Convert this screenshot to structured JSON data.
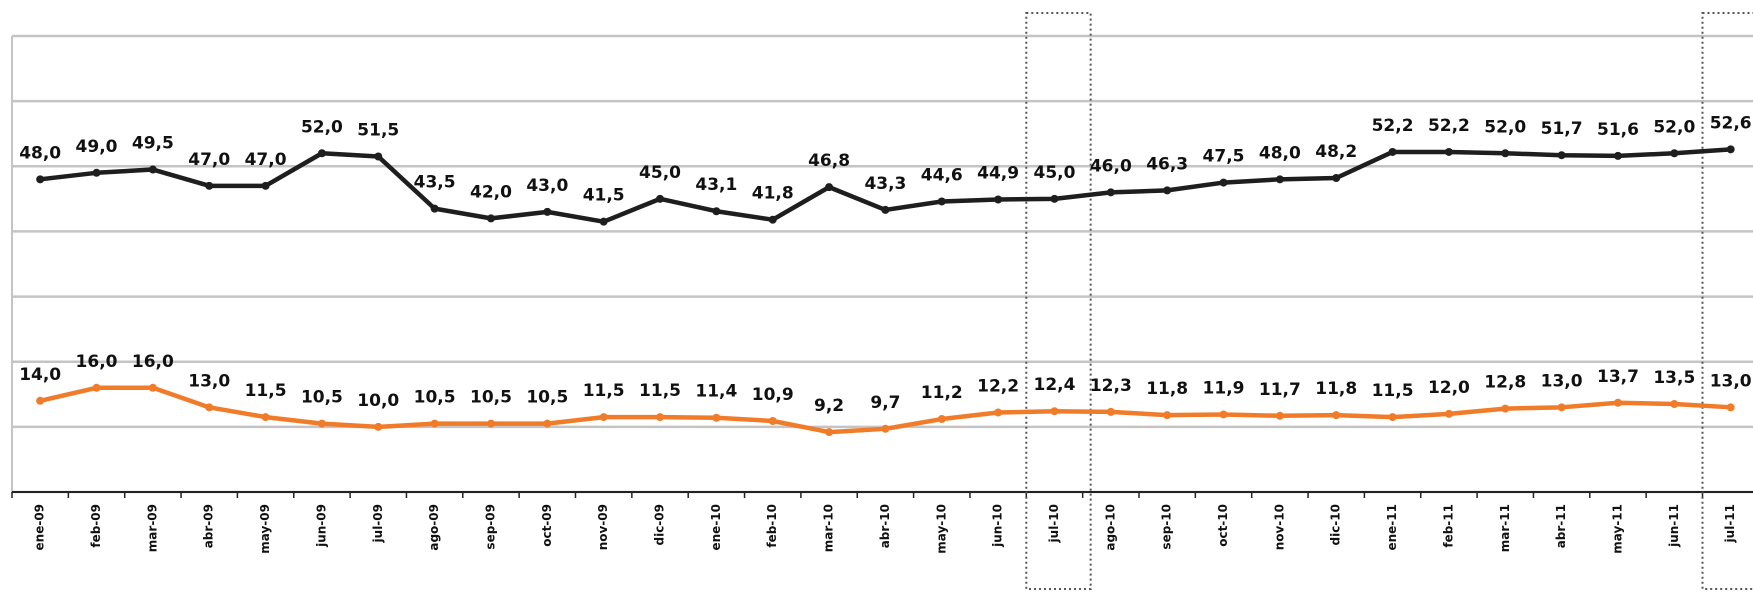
{
  "chart_data": {
    "type": "line",
    "categories": [
      "ene-09",
      "feb-09",
      "mar-09",
      "abr-09",
      "may-09",
      "jun-09",
      "jul-09",
      "ago-09",
      "sep-09",
      "oct-09",
      "nov-09",
      "dic-09",
      "ene-10",
      "feb-10",
      "mar-10",
      "abr-10",
      "may-10",
      "jun-10",
      "jul-10",
      "ago-10",
      "sep-10",
      "oct-10",
      "nov-10",
      "dic-10",
      "ene-11",
      "feb-11",
      "mar-11",
      "abr-11",
      "may-11",
      "jun-11",
      "jul-11"
    ],
    "series": [
      {
        "color": "#1e1e1e",
        "values": [
          48.0,
          49.0,
          49.5,
          47.0,
          47.0,
          52.0,
          51.5,
          43.5,
          42.0,
          43.0,
          41.5,
          45.0,
          43.1,
          41.8,
          46.8,
          43.3,
          44.6,
          44.9,
          45.0,
          46.0,
          46.3,
          47.5,
          48.0,
          48.2,
          52.2,
          52.2,
          52.0,
          51.7,
          51.6,
          52.0,
          52.6
        ],
        "value_labels": [
          "48,0",
          "49,0",
          "49,5",
          "47,0",
          "47,0",
          "52,0",
          "51,5",
          "43,5",
          "42,0",
          "43,0",
          "41,5",
          "45,0",
          "43,1",
          "41,8",
          "46,8",
          "43,3",
          "44,6",
          "44,9",
          "45,0",
          "46,0",
          "46,3",
          "47,5",
          "48,0",
          "48,2",
          "52,2",
          "52,2",
          "52,0",
          "51,7",
          "51,6",
          "52,0",
          "52,6"
        ]
      },
      {
        "color": "#f07c2a",
        "values": [
          14.0,
          16.0,
          16.0,
          13.0,
          11.5,
          10.5,
          10.0,
          10.5,
          10.5,
          10.5,
          11.5,
          11.5,
          11.4,
          10.9,
          9.2,
          9.7,
          11.2,
          12.2,
          12.4,
          12.3,
          11.8,
          11.9,
          11.7,
          11.8,
          11.5,
          12.0,
          12.8,
          13.0,
          13.7,
          13.5,
          13.0
        ],
        "value_labels": [
          "14,0",
          "16,0",
          "16,0",
          "13,0",
          "11,5",
          "10,5",
          "10,0",
          "10,5",
          "10,5",
          "10,5",
          "11,5",
          "11,5",
          "11,4",
          "10,9",
          "9,2",
          "9,7",
          "11,2",
          "12,2",
          "12,4",
          "12,3",
          "11,8",
          "11,9",
          "11,7",
          "11,8",
          "11,5",
          "12,0",
          "12,8",
          "13,0",
          "13,7",
          "13,5",
          "13,0"
        ]
      }
    ],
    "ylim": [
      0,
      70
    ],
    "yticks": [
      0,
      10,
      20,
      30,
      40,
      50,
      60,
      70
    ],
    "grid": true
  }
}
